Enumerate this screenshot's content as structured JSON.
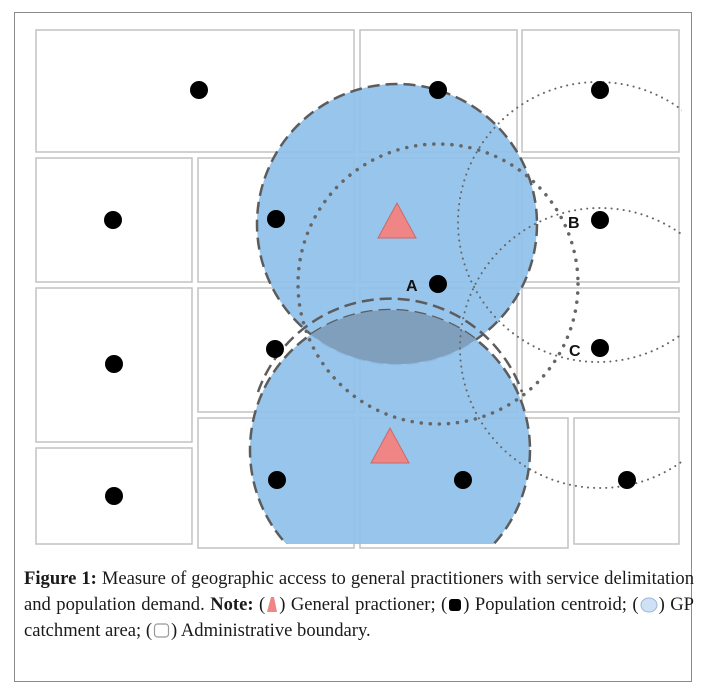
{
  "diagram": {
    "point_labels": [
      "A",
      "B",
      "C"
    ]
  },
  "caption": {
    "figure_label": "Figure 1:",
    "text": "Measure of geographic access to general practitioners with service delimitation and population demand.",
    "note_label": "Note:",
    "legend": [
      {
        "symbol": "triangle-icon",
        "text": "General practioner;"
      },
      {
        "symbol": "dot-icon",
        "text": "Population centroid;"
      },
      {
        "symbol": "circle-icon",
        "text": "GP catchment area;"
      },
      {
        "symbol": "square-icon",
        "text": "Administrative boundary."
      }
    ]
  },
  "colors": {
    "catchment_fill": "#8ec0ea",
    "catchment_overlap": "#7f9fbd",
    "gp_marker": "#ef8585",
    "centroid": "#000000",
    "boundary": "#c2c2c2"
  }
}
